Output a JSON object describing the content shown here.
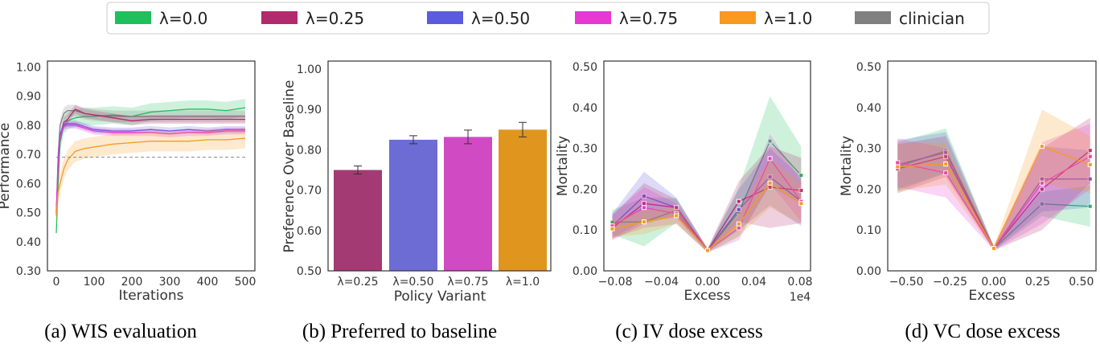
{
  "legend": [
    {
      "label": "λ=0.0",
      "color": "#1fbf5c"
    },
    {
      "label": "λ=0.25",
      "color": "#b12a6e"
    },
    {
      "label": "λ=0.50",
      "color": "#5b5be0"
    },
    {
      "label": "λ=0.75",
      "color": "#e838d2"
    },
    {
      "label": "λ=1.0",
      "color": "#f79a1e"
    },
    {
      "label": "clinician",
      "color": "#808080"
    }
  ],
  "captions": [
    "(a) WIS evaluation",
    "(b) Preferred to baseline",
    "(c) IV dose excess",
    "(d) VC dose excess"
  ],
  "chart_data": [
    {
      "type": "line",
      "xlabel": "Iterations",
      "ylabel": "Performance",
      "xlim": [
        0,
        500
      ],
      "ylim": [
        0.3,
        1.02
      ],
      "xticks": [
        0,
        100,
        200,
        300,
        400,
        500
      ],
      "yticks": [
        0.3,
        0.4,
        0.5,
        0.6,
        0.7,
        0.8,
        0.9,
        1.0
      ],
      "x": [
        0,
        5,
        10,
        20,
        30,
        50,
        75,
        100,
        150,
        200,
        250,
        300,
        350,
        400,
        450,
        500
      ],
      "reference_line": 0.69,
      "series": [
        {
          "name": "λ=0.0",
          "color": "#1fbf5c",
          "ci": 0.03,
          "values": [
            0.43,
            0.6,
            0.74,
            0.8,
            0.815,
            0.825,
            0.83,
            0.83,
            0.835,
            0.83,
            0.845,
            0.85,
            0.855,
            0.855,
            0.85,
            0.86
          ]
        },
        {
          "name": "clinician",
          "color": "#808080",
          "ci": 0.02,
          "values": [
            0.5,
            0.7,
            0.8,
            0.84,
            0.85,
            0.85,
            0.84,
            0.835,
            0.83,
            0.83,
            0.83,
            0.83,
            0.83,
            0.83,
            0.83,
            0.83
          ]
        },
        {
          "name": "λ=0.25",
          "color": "#b12a6e",
          "ci": 0.015,
          "values": [
            0.49,
            0.65,
            0.76,
            0.81,
            0.82,
            0.855,
            0.84,
            0.835,
            0.825,
            0.815,
            0.82,
            0.82,
            0.82,
            0.82,
            0.82,
            0.82
          ]
        },
        {
          "name": "λ=0.50",
          "color": "#5b5be0",
          "ci": 0.012,
          "values": [
            0.5,
            0.68,
            0.77,
            0.8,
            0.805,
            0.805,
            0.795,
            0.785,
            0.78,
            0.78,
            0.785,
            0.78,
            0.785,
            0.78,
            0.785,
            0.785
          ]
        },
        {
          "name": "λ=0.75",
          "color": "#e838d2",
          "ci": 0.012,
          "values": [
            0.5,
            0.66,
            0.76,
            0.795,
            0.8,
            0.8,
            0.79,
            0.78,
            0.775,
            0.775,
            0.775,
            0.77,
            0.775,
            0.775,
            0.78,
            0.78
          ]
        },
        {
          "name": "λ=1.0",
          "color": "#f79a1e",
          "ci": 0.035,
          "values": [
            0.49,
            0.57,
            0.6,
            0.65,
            0.68,
            0.71,
            0.72,
            0.725,
            0.735,
            0.74,
            0.745,
            0.745,
            0.745,
            0.75,
            0.75,
            0.755
          ]
        }
      ]
    },
    {
      "type": "bar",
      "xlabel": "Policy Variant",
      "ylabel": "Preference Over Baseline",
      "ylim": [
        0.5,
        1.02
      ],
      "yticks": [
        0.5,
        0.6,
        0.7,
        0.8,
        0.9,
        1.0
      ],
      "categories": [
        "λ=0.25",
        "λ=0.50",
        "λ=0.75",
        "λ=1.0"
      ],
      "values": [
        0.75,
        0.825,
        0.832,
        0.85
      ],
      "errors": [
        0.01,
        0.01,
        0.017,
        0.018
      ],
      "colors": [
        "#a33a73",
        "#6c6cd4",
        "#d04ac4",
        "#e0951f"
      ]
    },
    {
      "type": "line",
      "xlabel": "Excess",
      "ylabel": "Mortality",
      "x_scale_note": "1e4",
      "ylim": [
        0,
        0.51
      ],
      "xticks": [
        -0.08,
        -0.04,
        0.0,
        0.04,
        0.08
      ],
      "yticks": [
        0,
        0.1,
        0.2,
        0.3,
        0.4,
        0.5
      ],
      "x": [
        -0.0825,
        -0.055,
        -0.027,
        0,
        0.027,
        0.054,
        0.081
      ],
      "series": [
        {
          "name": "λ=0.0",
          "color": "#1fbf5c",
          "ci": [
            0.03,
            0.06,
            0.03,
            0.005,
            0.06,
            0.11,
            0.07
          ],
          "values": [
            0.119,
            0.12,
            0.148,
            0.049,
            0.144,
            0.318,
            0.234
          ]
        },
        {
          "name": "λ=0.50",
          "color": "#5b5be0",
          "ci": [
            0.03,
            0.06,
            0.025,
            0.005,
            0.05,
            0.07,
            0.06
          ],
          "values": [
            0.11,
            0.183,
            0.155,
            0.05,
            0.15,
            0.23,
            0.17
          ]
        },
        {
          "name": "λ=0.25",
          "color": "#b12a6e",
          "ci": [
            0.03,
            0.05,
            0.02,
            0.005,
            0.05,
            0.1,
            0.08
          ],
          "values": [
            0.105,
            0.165,
            0.155,
            0.05,
            0.17,
            0.205,
            0.197
          ]
        },
        {
          "name": "λ=0.75",
          "color": "#e838d2",
          "ci": [
            0.03,
            0.05,
            0.025,
            0.005,
            0.03,
            0.06,
            0.05
          ],
          "values": [
            0.11,
            0.155,
            0.14,
            0.05,
            0.105,
            0.275,
            0.17
          ]
        },
        {
          "name": "λ=1.0",
          "color": "#f79a1e",
          "ci": [
            0.02,
            0.03,
            0.02,
            0.005,
            0.03,
            0.06,
            0.05
          ],
          "values": [
            0.103,
            0.12,
            0.135,
            0.05,
            0.115,
            0.215,
            0.165
          ]
        }
      ]
    },
    {
      "type": "line",
      "xlabel": "Excess",
      "ylabel": "Mortality",
      "ylim": [
        0,
        0.51
      ],
      "xticks": [
        -0.5,
        -0.25,
        0.0,
        0.25,
        0.5
      ],
      "yticks": [
        0,
        0.1,
        0.2,
        0.3,
        0.4,
        0.5
      ],
      "x": [
        -0.55,
        -0.275,
        0,
        0.275,
        0.55
      ],
      "series": [
        {
          "name": "λ=0.0",
          "color": "#1fbf5c",
          "ci": [
            0.06,
            0.055,
            0.005,
            0.03,
            0.05
          ],
          "values": [
            0.255,
            0.294,
            0.055,
            0.164,
            0.158
          ]
        },
        {
          "name": "λ=0.50",
          "color": "#5b5be0",
          "ci": [
            0.06,
            0.05,
            0.005,
            0.08,
            0.07
          ],
          "values": [
            0.26,
            0.29,
            0.055,
            0.225,
            0.225
          ]
        },
        {
          "name": "λ=0.25",
          "color": "#b12a6e",
          "ci": [
            0.06,
            0.05,
            0.005,
            0.1,
            0.08
          ],
          "values": [
            0.25,
            0.28,
            0.055,
            0.2,
            0.295
          ]
        },
        {
          "name": "λ=0.75",
          "color": "#e838d2",
          "ci": [
            0.06,
            0.06,
            0.005,
            0.1,
            0.08
          ],
          "values": [
            0.265,
            0.24,
            0.055,
            0.215,
            0.28
          ]
        },
        {
          "name": "λ=1.0",
          "color": "#f79a1e",
          "ci": [
            0.06,
            0.05,
            0.005,
            0.09,
            0.07
          ],
          "values": [
            0.255,
            0.262,
            0.055,
            0.305,
            0.26
          ]
        }
      ]
    }
  ]
}
